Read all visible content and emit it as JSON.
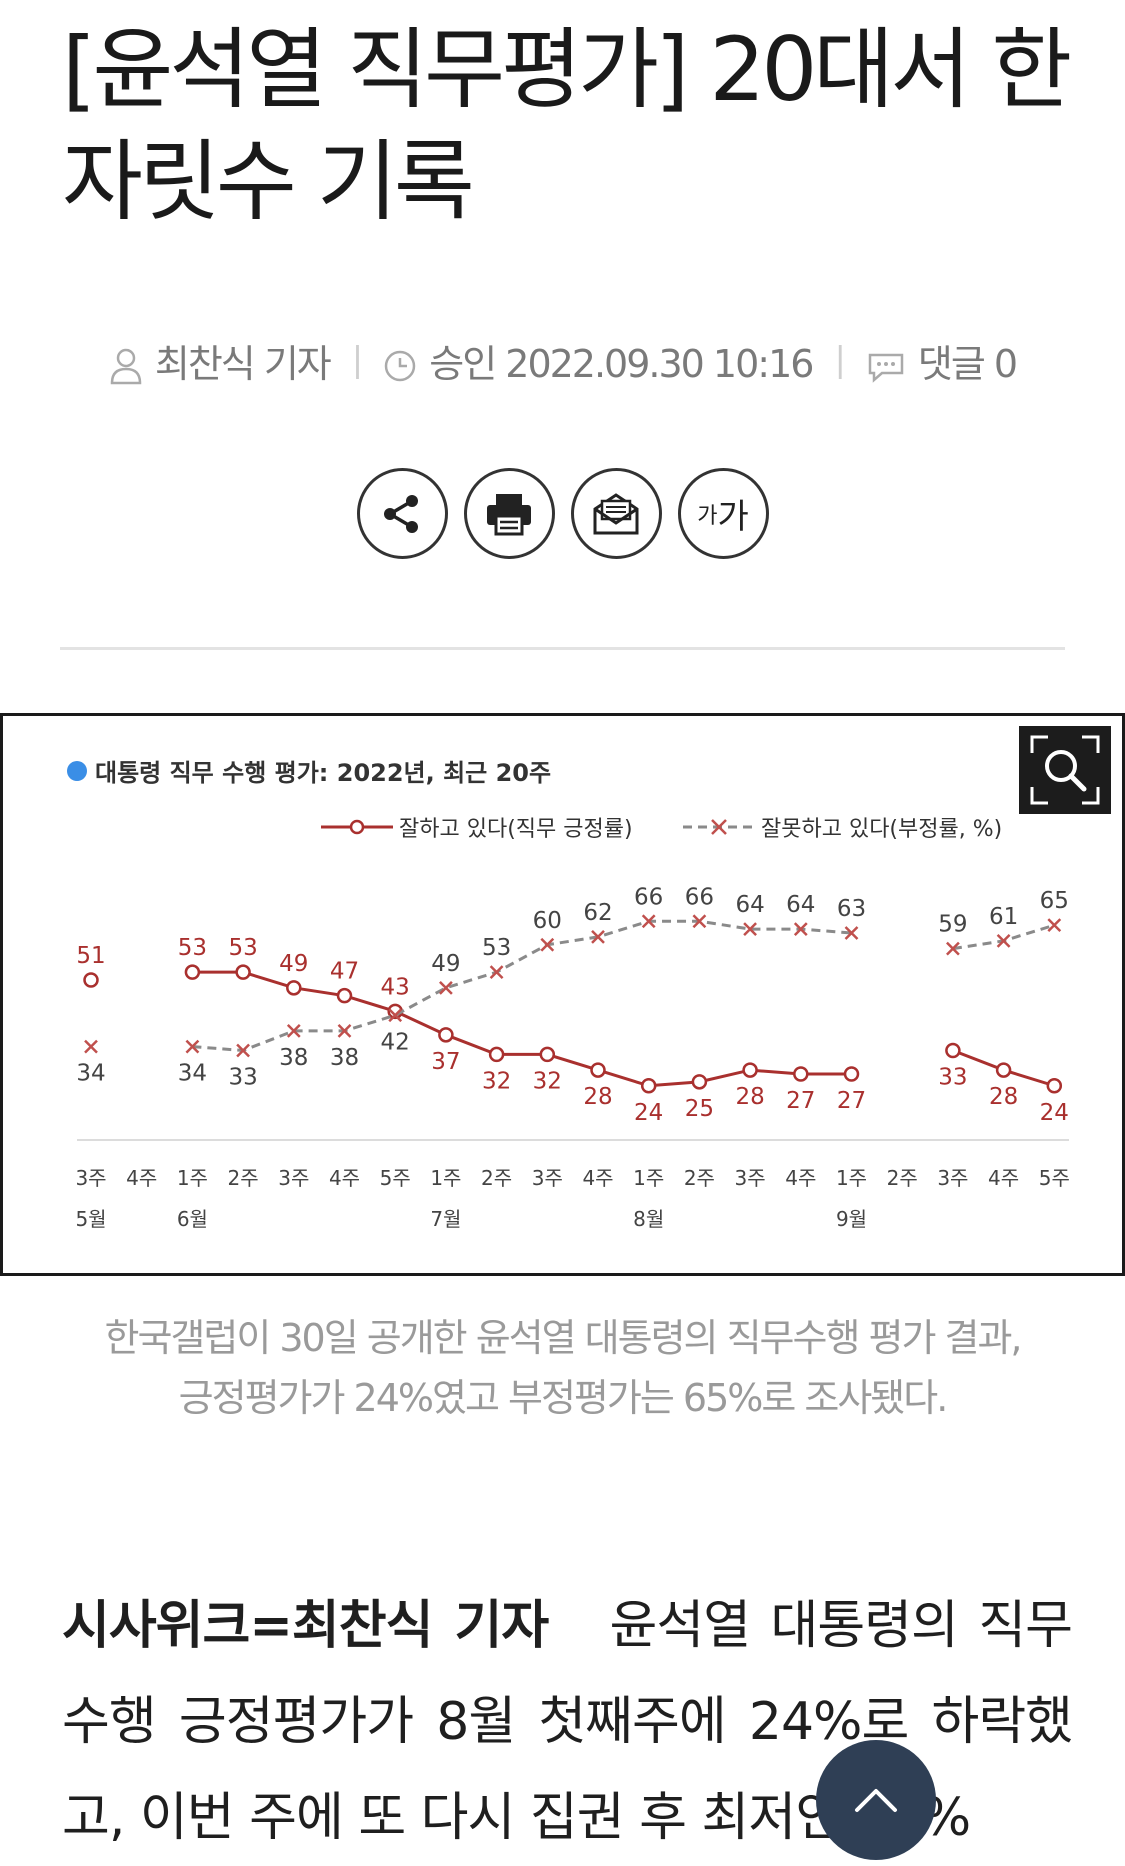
{
  "article": {
    "title": "[윤석열 직무평가] 20대서 한 자릿수 기록",
    "author": "최찬식 기자",
    "approved_label": "승인",
    "approved_time": "2022.09.30 10:16",
    "comments_label": "댓글",
    "comments_count": "0",
    "font_size_label_small": "가",
    "font_size_label_big": "가",
    "caption_line1": "한국갤럽이 30일 공개한 윤석열 대통령의 직무수행 평가 결과,",
    "caption_line2": "긍정평가가 24%였고 부정평가는 65%로 조사됐다.",
    "body_lead": "시사위크=최찬식 기자",
    "body_text": "윤석열 대통령의 직무수행 긍정평가가 8월 첫째주에 24%로 하락했고, 이번 주에 또 다시 집권 후 최저인 24%"
  },
  "chart_data": {
    "type": "line",
    "title": "대통령 직무 수행 평가: 2022년, 최근 20주",
    "title_bullet_color": "#3a8ee6",
    "x": [
      "3주",
      "4주",
      "1주",
      "2주",
      "3주",
      "4주",
      "5주",
      "1주",
      "2주",
      "3주",
      "4주",
      "1주",
      "2주",
      "3주",
      "4주",
      "1주",
      "2주",
      "3주",
      "4주",
      "5주"
    ],
    "month_labels": [
      {
        "index": 0,
        "label": "5월"
      },
      {
        "index": 2,
        "label": "6월"
      },
      {
        "index": 7,
        "label": "7월"
      },
      {
        "index": 11,
        "label": "8월"
      },
      {
        "index": 15,
        "label": "9월"
      }
    ],
    "series": [
      {
        "name": "잘하고 있다(직무 긍정률)",
        "color": "#a9302e",
        "marker": "circle",
        "line": "solid",
        "values": [
          51,
          null,
          53,
          53,
          49,
          47,
          43,
          37,
          32,
          32,
          28,
          24,
          25,
          28,
          27,
          27,
          null,
          33,
          28,
          24
        ]
      },
      {
        "name": "잘못하고 있다(부정률, %)",
        "color": "#8a8a8a",
        "marker_color": "#c0504d",
        "marker": "x",
        "line": "dashed",
        "values": [
          34,
          null,
          34,
          33,
          38,
          38,
          42,
          49,
          53,
          60,
          62,
          66,
          66,
          64,
          64,
          63,
          null,
          59,
          61,
          65
        ]
      }
    ],
    "ylim": [
      15,
      75
    ],
    "grid": false,
    "legend": "top-right"
  }
}
